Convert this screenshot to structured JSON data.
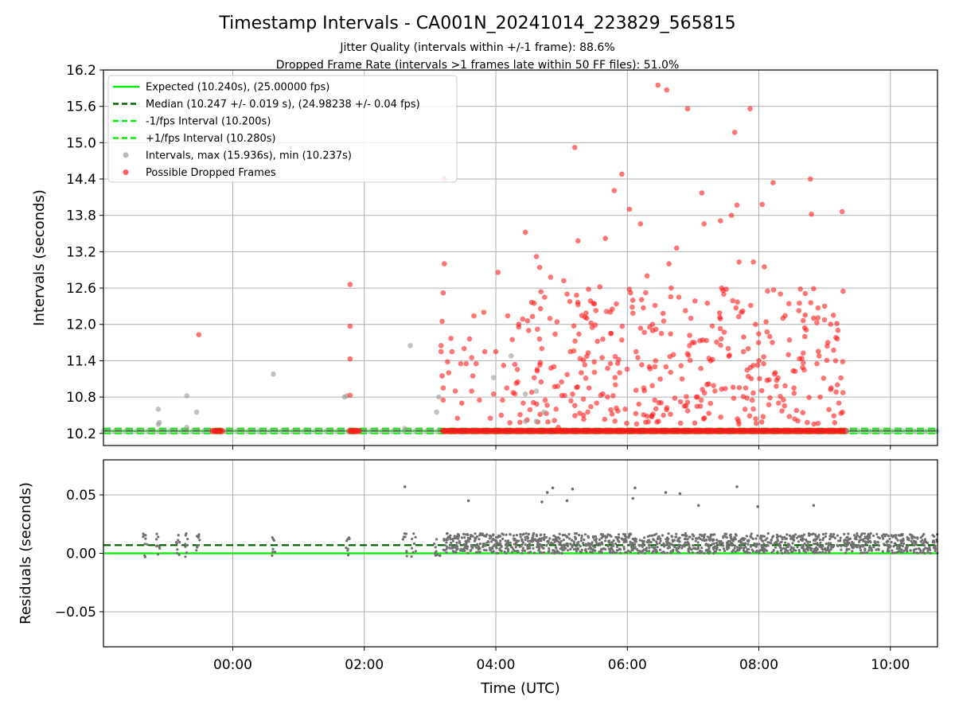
{
  "figure": {
    "title": "Timestamp Intervals - CA001N_20241014_223829_565815",
    "subtitle_1": "Jitter Quality (intervals within +/-1 frame): 88.6%",
    "subtitle_2": "Dropped Frame Rate (intervals >1 frames late within 50 FF files): 51.0%"
  },
  "colors": {
    "expected": "#00ee00",
    "median": "#006400",
    "interval_points": "#9a9a9a",
    "dropped_points": "#ff1a1a",
    "residual_points": "#707070",
    "grid": "#b0b0b0"
  },
  "chart_data": [
    {
      "type": "scatter",
      "panel": "intervals",
      "xlabel": "",
      "ylabel": "Intervals (seconds)",
      "ylim": [
        10.0,
        16.2
      ],
      "y_ticks": [
        10.2,
        10.8,
        11.4,
        12.0,
        12.6,
        13.2,
        13.8,
        14.4,
        15.0,
        15.6,
        16.2
      ],
      "y_tick_labels": [
        "10.2",
        "10.8",
        "11.4",
        "12.0",
        "12.6",
        "13.2",
        "13.8",
        "14.4",
        "15.0",
        "15.6",
        "16.2"
      ],
      "xlim": [
        "2024-10-14 22:02",
        "2024-10-15 10:43"
      ],
      "grid": true,
      "legend_position": "top-left",
      "legend": [
        "Expected (10.240s), (25.00000 fps)",
        "Median (10.247 +/- 0.019 s), (24.98238 +/- 0.04 fps)",
        "-1/fps Interval (10.200s)",
        "+1/fps Interval (10.280s)",
        "Intervals, max (15.936s), min (10.237s)",
        "Possible Dropped Frames"
      ],
      "reference_lines": [
        {
          "name": "Expected",
          "y": 10.24
        },
        {
          "name": "Median",
          "y": 10.247
        },
        {
          "name": "-1/fps Interval",
          "y": 10.2
        },
        {
          "name": "+1/fps Interval",
          "y": 10.28
        }
      ],
      "baseline_coverage": [
        {
          "series": "Intervals",
          "from": "2024-10-14 22:02",
          "to": "2024-10-15 03:12"
        },
        {
          "series": "Possible Dropped Frames",
          "from": "2024-10-14 23:42",
          "to": "2024-10-14 23:50"
        },
        {
          "series": "Possible Dropped Frames",
          "from": "2024-10-15 01:47",
          "to": "2024-10-15 01:56"
        },
        {
          "series": "Possible Dropped Frames",
          "from": "2024-10-15 03:12",
          "to": "2024-10-15 09:21"
        },
        {
          "series": "Intervals",
          "from": "2024-10-15 09:21",
          "to": "2024-10-15 10:43"
        }
      ],
      "series": [
        {
          "name": "Intervals",
          "points": [
            [
              "2024-10-14 22:52",
              10.6
            ],
            [
              "2024-10-14 22:52",
              10.35
            ],
            [
              "2024-10-14 22:53",
              10.38
            ],
            [
              "2024-10-14 23:18",
              10.82
            ],
            [
              "2024-10-14 23:18",
              10.3
            ],
            [
              "2024-10-14 23:27",
              10.55
            ],
            [
              "2024-10-15 00:37",
              11.18
            ],
            [
              "2024-10-15 01:42",
              10.8
            ],
            [
              "2024-10-15 01:44",
              10.82
            ],
            [
              "2024-10-15 02:37",
              10.28
            ],
            [
              "2024-10-15 02:42",
              11.65
            ],
            [
              "2024-10-15 03:06",
              10.55
            ],
            [
              "2024-10-15 03:08",
              10.8
            ],
            [
              "2024-10-15 03:58",
              11.12
            ],
            [
              "2024-10-15 04:14",
              11.48
            ],
            [
              "2024-10-15 04:27",
              10.85
            ],
            [
              "2024-10-15 04:27",
              10.4
            ],
            [
              "2024-10-15 04:37",
              10.4
            ],
            [
              "2024-10-15 04:37",
              10.9
            ],
            [
              "2024-10-15 04:44",
              10.55
            ]
          ]
        },
        {
          "name": "Possible Dropped Frames",
          "points": [
            [
              "2024-10-14 23:29",
              11.83
            ],
            [
              "2024-10-15 01:47",
              12.66
            ],
            [
              "2024-10-15 01:47",
              11.97
            ],
            [
              "2024-10-15 01:47",
              11.43
            ],
            [
              "2024-10-15 01:47",
              10.83
            ],
            [
              "2024-10-15 03:10",
              11.65
            ],
            [
              "2024-10-15 03:10",
              11.55
            ],
            [
              "2024-10-15 03:11",
              12.05
            ],
            [
              "2024-10-15 03:11",
              11.15
            ],
            [
              "2024-10-15 03:12",
              10.95
            ],
            [
              "2024-10-15 03:12",
              10.75
            ],
            [
              "2024-10-15 03:12",
              12.52
            ],
            [
              "2024-10-15 03:13",
              13.0
            ],
            [
              "2024-10-15 03:13",
              14.41
            ],
            [
              "2024-10-15 03:16",
              11.38
            ],
            [
              "2024-10-15 03:17",
              11.2
            ],
            [
              "2024-10-15 03:19",
              11.77
            ],
            [
              "2024-10-15 03:20",
              11.55
            ],
            [
              "2024-10-15 03:23",
              10.9
            ],
            [
              "2024-10-15 03:25",
              10.45
            ],
            [
              "2024-10-15 03:28",
              11.35
            ],
            [
              "2024-10-15 03:29",
              10.7
            ],
            [
              "2024-10-15 03:31",
              11.6
            ],
            [
              "2024-10-15 03:33",
              11.35
            ],
            [
              "2024-10-15 03:36",
              11.76
            ],
            [
              "2024-10-15 03:38",
              11.45
            ],
            [
              "2024-10-15 03:38",
              10.9
            ],
            [
              "2024-10-15 03:39",
              11.15
            ],
            [
              "2024-10-15 03:40",
              12.14
            ],
            [
              "2024-10-15 03:42",
              11.35
            ],
            [
              "2024-10-15 03:45",
              10.75
            ],
            [
              "2024-10-15 03:49",
              12.2
            ],
            [
              "2024-10-15 03:50",
              11.55
            ],
            [
              "2024-10-15 03:55",
              10.45
            ],
            [
              "2024-10-15 03:58",
              10.85
            ],
            [
              "2024-10-15 04:00",
              11.55
            ],
            [
              "2024-10-15 04:02",
              12.86
            ],
            [
              "2024-10-15 04:05",
              10.5
            ],
            [
              "2024-10-15 04:10",
              10.95
            ],
            [
              "2024-10-15 04:15",
              11.75
            ],
            [
              "2024-10-15 04:20",
              11.05
            ],
            [
              "2024-10-15 04:25",
              10.7
            ],
            [
              "2024-10-15 04:27",
              13.52
            ],
            [
              "2024-10-15 04:30",
              11.9
            ],
            [
              "2024-10-15 04:35",
              12.35
            ],
            [
              "2024-10-15 04:37",
              13.12
            ],
            [
              "2024-10-15 04:38",
              11.92
            ],
            [
              "2024-10-15 04:40",
              12.94
            ],
            [
              "2024-10-15 04:42",
              11.6
            ],
            [
              "2024-10-15 04:45",
              10.75
            ],
            [
              "2024-10-15 04:50",
              12.78
            ],
            [
              "2024-10-15 04:53",
              11.3
            ],
            [
              "2024-10-15 04:55",
              10.6
            ],
            [
              "2024-10-15 04:57",
              10.3
            ],
            [
              "2024-10-15 05:00",
              11.05
            ],
            [
              "2024-10-15 05:02",
              12.72
            ],
            [
              "2024-10-15 05:05",
              12.5
            ],
            [
              "2024-10-15 05:08",
              11.55
            ],
            [
              "2024-10-15 05:10",
              10.85
            ],
            [
              "2024-10-15 05:12",
              14.92
            ],
            [
              "2024-10-15 05:15",
              13.38
            ],
            [
              "2024-10-15 05:18",
              11.2
            ],
            [
              "2024-10-15 05:20",
              10.5
            ],
            [
              "2024-10-15 05:23",
              12.1
            ],
            [
              "2024-10-15 05:25",
              10.95
            ],
            [
              "2024-10-15 05:28",
              11.95
            ],
            [
              "2024-10-15 05:30",
              12.34
            ],
            [
              "2024-10-15 05:32",
              10.7
            ],
            [
              "2024-10-15 05:35",
              12.62
            ],
            [
              "2024-10-15 05:37",
              11.45
            ],
            [
              "2024-10-15 05:40",
              13.42
            ],
            [
              "2024-10-15 05:42",
              10.8
            ],
            [
              "2024-10-15 05:45",
              11.85
            ],
            [
              "2024-10-15 05:48",
              14.21
            ],
            [
              "2024-10-15 05:50",
              12.34
            ],
            [
              "2024-10-15 05:53",
              11.2
            ],
            [
              "2024-10-15 05:55",
              14.48
            ],
            [
              "2024-10-15 05:58",
              10.6
            ],
            [
              "2024-10-15 06:02",
              13.9
            ],
            [
              "2024-10-15 06:05",
              12.4
            ],
            [
              "2024-10-15 06:08",
              11.55
            ],
            [
              "2024-10-15 06:12",
              13.66
            ],
            [
              "2024-10-15 06:15",
              10.95
            ],
            [
              "2024-10-15 06:18",
              12.8
            ],
            [
              "2024-10-15 06:20",
              11.3
            ],
            [
              "2024-10-15 06:23",
              12.0
            ],
            [
              "2024-10-15 06:25",
              10.75
            ],
            [
              "2024-10-15 06:28",
              15.95
            ],
            [
              "2024-10-15 06:31",
              11.85
            ],
            [
              "2024-10-15 06:33",
              10.5
            ],
            [
              "2024-10-15 06:36",
              15.87
            ],
            [
              "2024-10-15 06:38",
              13.0
            ],
            [
              "2024-10-15 06:40",
              12.6
            ],
            [
              "2024-10-15 06:42",
              11.5
            ],
            [
              "2024-10-15 06:45",
              13.26
            ],
            [
              "2024-10-15 06:47",
              12.45
            ],
            [
              "2024-10-15 06:50",
              11.1
            ],
            [
              "2024-10-15 06:52",
              10.65
            ],
            [
              "2024-10-15 06:55",
              15.56
            ],
            [
              "2024-10-15 06:58",
              12.1
            ],
            [
              "2024-10-15 07:01",
              11.7
            ],
            [
              "2024-10-15 07:04",
              10.8
            ],
            [
              "2024-10-15 07:08",
              14.17
            ],
            [
              "2024-10-15 07:10",
              13.66
            ],
            [
              "2024-10-15 07:13",
              12.35
            ],
            [
              "2024-10-15 07:16",
              11.4
            ],
            [
              "2024-10-15 07:20",
              10.9
            ],
            [
              "2024-10-15 07:25",
              13.71
            ],
            [
              "2024-10-15 07:28",
              12.5
            ],
            [
              "2024-10-15 07:32",
              11.6
            ],
            [
              "2024-10-15 07:35",
              13.8
            ],
            [
              "2024-10-15 07:38",
              15.17
            ],
            [
              "2024-10-15 07:40",
              13.97
            ],
            [
              "2024-10-15 07:42",
              13.03
            ],
            [
              "2024-10-15 07:44",
              12.2
            ],
            [
              "2024-10-15 07:46",
              11.55
            ],
            [
              "2024-10-15 07:48",
              10.95
            ],
            [
              "2024-10-15 07:52",
              15.56
            ],
            [
              "2024-10-15 07:55",
              13.03
            ],
            [
              "2024-10-15 07:57",
              12.0
            ],
            [
              "2024-10-15 08:00",
              11.4
            ],
            [
              "2024-10-15 08:03",
              13.98
            ],
            [
              "2024-10-15 08:05",
              12.95
            ],
            [
              "2024-10-15 08:08",
              12.55
            ],
            [
              "2024-10-15 08:10",
              11.8
            ],
            [
              "2024-10-15 08:13",
              14.34
            ],
            [
              "2024-10-15 08:15",
              11.2
            ],
            [
              "2024-10-15 08:18",
              10.7
            ],
            [
              "2024-10-15 08:22",
              12.1
            ],
            [
              "2024-10-15 08:27",
              11.5
            ],
            [
              "2024-10-15 08:32",
              10.95
            ],
            [
              "2024-10-15 08:37",
              12.35
            ],
            [
              "2024-10-15 08:42",
              11.8
            ],
            [
              "2024-10-15 08:47",
              14.4
            ],
            [
              "2024-10-15 08:48",
              13.82
            ],
            [
              "2024-10-15 08:50",
              12.1
            ],
            [
              "2024-10-15 08:53",
              11.35
            ],
            [
              "2024-10-15 08:56",
              10.8
            ],
            [
              "2024-10-15 09:00",
              12.3
            ],
            [
              "2024-10-15 09:03",
              11.7
            ],
            [
              "2024-10-15 09:06",
              10.95
            ],
            [
              "2024-10-15 09:08",
              12.15
            ],
            [
              "2024-10-15 09:10",
              11.4
            ],
            [
              "2024-10-15 09:13",
              10.7
            ],
            [
              "2024-10-15 09:16",
              13.86
            ]
          ]
        }
      ],
      "dense_cloud": {
        "series": "Possible Dropped Frames",
        "from": "2024-10-15 04:00",
        "to": "2024-10-15 09:18",
        "y_range": [
          10.35,
          12.6
        ],
        "count": 320
      }
    },
    {
      "type": "scatter",
      "panel": "residuals",
      "xlabel": "Time (UTC)",
      "ylabel": "Residuals (seconds)",
      "ylim": [
        -0.08,
        0.08
      ],
      "y_ticks": [
        -0.05,
        0.0,
        0.05
      ],
      "y_tick_labels": [
        "−0.05",
        "0.00",
        "0.05"
      ],
      "xlim": [
        "2024-10-14 22:02",
        "2024-10-15 10:43"
      ],
      "x_ticks": [
        "2024-10-15 00:00",
        "2024-10-15 02:00",
        "2024-10-15 04:00",
        "2024-10-15 06:00",
        "2024-10-15 08:00",
        "2024-10-15 10:00"
      ],
      "x_tick_labels": [
        "00:00",
        "02:00",
        "04:00",
        "06:00",
        "08:00",
        "10:00"
      ],
      "grid": true,
      "reference_lines": [
        {
          "name": "Expected",
          "y": 0.0
        },
        {
          "name": "Median",
          "y": 0.007
        }
      ],
      "series": [
        {
          "name": "Residuals",
          "points": [
            [
              "2024-10-15 02:37",
              0.057
            ],
            [
              "2024-10-15 03:35",
              0.045
            ],
            [
              "2024-10-15 04:42",
              0.044
            ],
            [
              "2024-10-15 04:47",
              0.052
            ],
            [
              "2024-10-15 04:52",
              0.056
            ],
            [
              "2024-10-15 05:05",
              0.045
            ],
            [
              "2024-10-15 05:10",
              0.055
            ],
            [
              "2024-10-15 06:07",
              0.056
            ],
            [
              "2024-10-15 06:05",
              0.047
            ],
            [
              "2024-10-15 06:35",
              0.052
            ],
            [
              "2024-10-15 06:48",
              0.051
            ],
            [
              "2024-10-15 07:05",
              0.041
            ],
            [
              "2024-10-15 07:40",
              0.057
            ],
            [
              "2024-10-15 07:59",
              0.04
            ],
            [
              "2024-10-15 08:50",
              0.041
            ],
            [
              "2024-10-14 22:40",
              -0.003
            ],
            [
              "2024-10-15 03:09",
              -0.002
            ]
          ]
        }
      ],
      "residual_bands": [
        {
          "from": "2024-10-14 22:02",
          "to": "2024-10-15 03:12",
          "y_range": [
            -0.003,
            0.017
          ],
          "density": "sparse"
        },
        {
          "from": "2024-10-15 03:12",
          "to": "2024-10-15 10:43",
          "y_range": [
            0.0,
            0.017
          ],
          "density": "dense"
        }
      ]
    }
  ]
}
